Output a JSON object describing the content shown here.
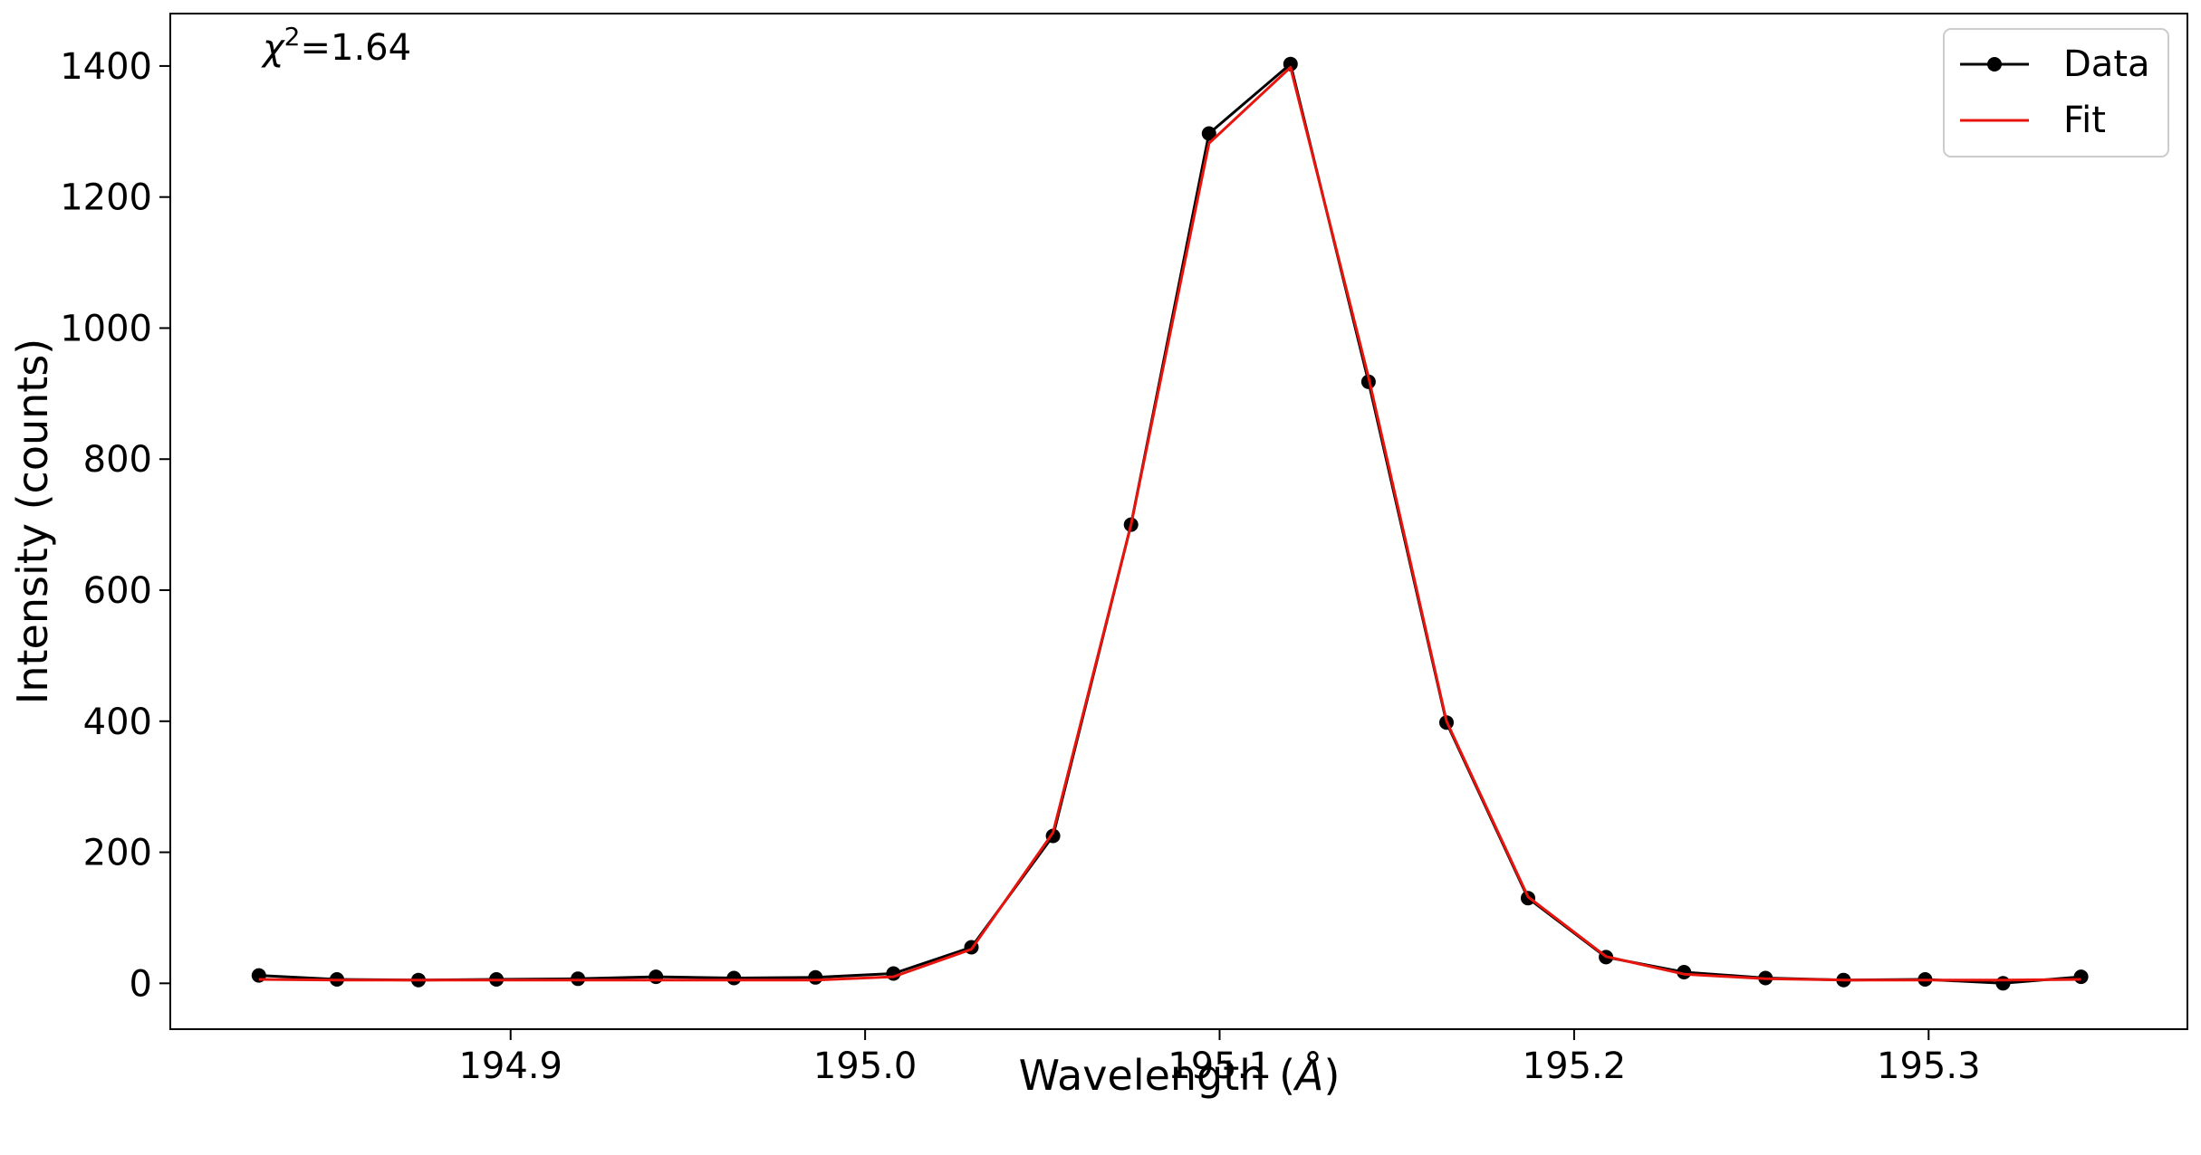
{
  "chart_data": {
    "type": "line",
    "xlabel_prefix": "Wavelength (",
    "xlabel_unit": "Å",
    "xlabel_suffix": ")",
    "ylabel": "Intensity (counts)",
    "annotation_symbol": "χ",
    "annotation_exp": "2",
    "annotation_value": "=1.64",
    "xlim": [
      194.804,
      195.373
    ],
    "ylim": [
      -70,
      1480
    ],
    "xticks": [
      194.9,
      195.0,
      195.1,
      195.2,
      195.3
    ],
    "xtick_labels": [
      "194.9",
      "195.0",
      "195.1",
      "195.2",
      "195.3"
    ],
    "yticks": [
      0,
      200,
      400,
      600,
      800,
      1000,
      1200,
      1400
    ],
    "ytick_labels": [
      "0",
      "200",
      "400",
      "600",
      "800",
      "1000",
      "1200",
      "1400"
    ],
    "grid": false,
    "legend_position": "top-right",
    "series": [
      {
        "name": "Data",
        "color": "#000000",
        "marker": "circle",
        "x": [
          194.829,
          194.851,
          194.874,
          194.896,
          194.919,
          194.941,
          194.963,
          194.986,
          195.008,
          195.03,
          195.053,
          195.075,
          195.097,
          195.12,
          195.142,
          195.164,
          195.187,
          195.209,
          195.231,
          195.254,
          195.276,
          195.299,
          195.321,
          195.343
        ],
        "y": [
          12,
          6,
          5,
          6,
          7,
          10,
          8,
          9,
          15,
          55,
          225,
          700,
          1297,
          1403,
          918,
          398,
          130,
          40,
          17,
          8,
          5,
          6,
          0,
          10
        ]
      },
      {
        "name": "Fit",
        "color": "#e8140e",
        "marker": "none",
        "x": [
          194.829,
          194.851,
          194.874,
          194.896,
          194.919,
          194.941,
          194.963,
          194.986,
          195.008,
          195.03,
          195.053,
          195.075,
          195.097,
          195.12,
          195.142,
          195.164,
          195.187,
          195.209,
          195.231,
          195.254,
          195.276,
          195.299,
          195.321,
          195.343
        ],
        "y": [
          6,
          5,
          5,
          5,
          5,
          5,
          5,
          5,
          10,
          52,
          230,
          700,
          1282,
          1398,
          925,
          400,
          132,
          41,
          14,
          7,
          5,
          5,
          5,
          6
        ]
      }
    ]
  }
}
